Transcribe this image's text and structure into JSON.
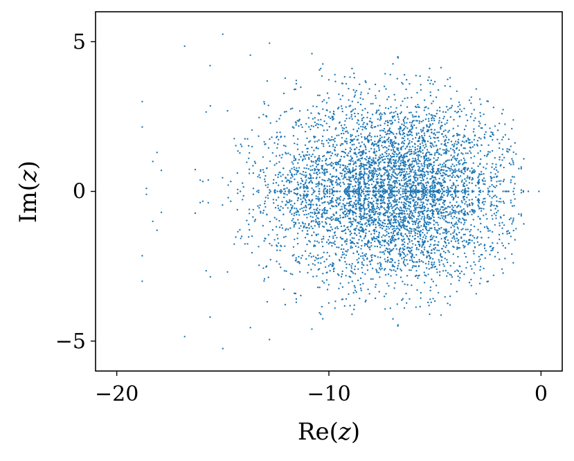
{
  "chart_data": {
    "type": "scatter",
    "title": "",
    "xlabel_prefix": "Re(",
    "xlabel_var": "z",
    "xlabel_suffix": ")",
    "ylabel_prefix": "Im(",
    "ylabel_var": "z",
    "ylabel_suffix": ")",
    "xlim": [
      -21,
      1
    ],
    "ylim": [
      -6,
      6
    ],
    "xticks": [
      -20,
      -10,
      0
    ],
    "xtick_labels": [
      "−20",
      "−10",
      "0"
    ],
    "yticks": [
      -5,
      0,
      5
    ],
    "ytick_labels": [
      "−5",
      "0",
      "5"
    ],
    "grid": false,
    "legend": "none",
    "marker_color": "#1f77b4",
    "description_of_distribution": {
      "points_total_approx": 5000,
      "symmetric_about_real_axis": true,
      "density_peak_real": -7,
      "real_extent": [
        -18.8,
        0
      ],
      "imag_extent": [
        -5.3,
        5.3
      ],
      "dense_on_real_axis": true
    },
    "series": [
      {
        "name": "",
        "points": [
          [
            -18.8,
            3.0
          ],
          [
            -18.8,
            2.15
          ],
          [
            -18.8,
            -2.15
          ],
          [
            -18.8,
            -3.0
          ],
          [
            -18.6,
            0.1
          ],
          [
            -18.6,
            -0.1
          ],
          [
            -18.3,
            1.0
          ],
          [
            -18.3,
            -1.0
          ],
          [
            -18.1,
            1.3
          ],
          [
            -18.1,
            -1.3
          ],
          [
            -17.9,
            0.7
          ],
          [
            -17.9,
            -0.7
          ],
          [
            -16.8,
            4.85
          ],
          [
            -16.8,
            -4.85
          ],
          [
            -15.0,
            5.25
          ],
          [
            -15.0,
            -5.25
          ],
          [
            -12.8,
            4.95
          ],
          [
            -12.8,
            -4.95
          ],
          [
            -0.1,
            0.0
          ],
          [
            -0.6,
            0.0
          ],
          [
            -1.3,
            0.9
          ],
          [
            -1.3,
            -0.9
          ],
          [
            -1.5,
            1.4
          ],
          [
            -1.5,
            -1.4
          ],
          [
            -5.7,
            3.85
          ],
          [
            -5.7,
            -3.85
          ],
          [
            -7.1,
            3.9
          ],
          [
            -7.1,
            -3.9
          ],
          [
            -10.8,
            4.6
          ],
          [
            -10.8,
            -4.6
          ],
          [
            -13.7,
            4.55
          ],
          [
            -13.7,
            -4.55
          ],
          [
            -15.6,
            4.2
          ],
          [
            -15.6,
            -4.2
          ],
          [
            -8.8,
            3.8
          ],
          [
            -8.8,
            -3.8
          ]
        ]
      }
    ]
  }
}
